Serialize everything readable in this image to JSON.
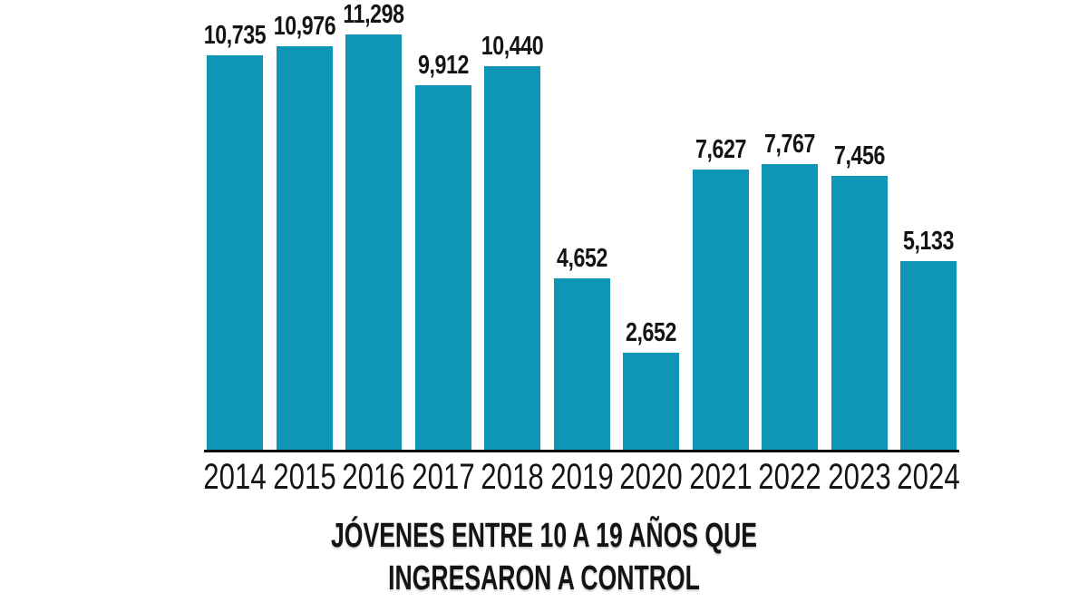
{
  "chart_data": {
    "type": "bar",
    "title": "JÓVENES ENTRE 10 A 19 AÑOS QUE INGRESARON A CONTROL",
    "title_lines": [
      "JÓVENES ENTRE 10 A 19 AÑOS QUE",
      "INGRESARON A CONTROL"
    ],
    "categories": [
      "2014",
      "2015",
      "2016",
      "2017",
      "2018",
      "2019",
      "2020",
      "2021",
      "2022",
      "2023",
      "2024"
    ],
    "values": [
      10735,
      10976,
      11298,
      9912,
      10440,
      4652,
      2652,
      7627,
      7767,
      7456,
      5133
    ],
    "value_labels": [
      "10,735",
      "10,976",
      "11,298",
      "9,912",
      "10,440",
      "4,652",
      "2,652",
      "7,627",
      "7,767",
      "7,456",
      "5,133"
    ],
    "xlabel": "",
    "ylabel": "",
    "ylim": [
      0,
      11298
    ],
    "grid": false,
    "legend": "none",
    "title_position": "bottom",
    "bar_color": "#0f95b5",
    "axis_color": "#0e0e0e",
    "label_color": "#141414",
    "background_color": "#ffffff"
  }
}
